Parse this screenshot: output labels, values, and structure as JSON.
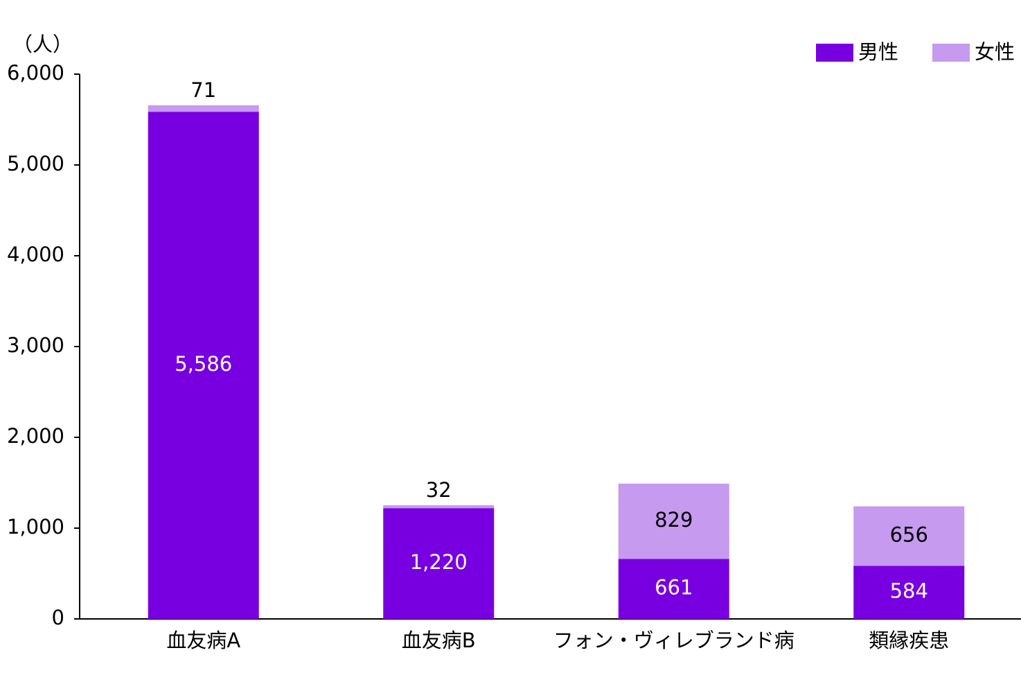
{
  "chart_data": {
    "type": "stacked_bar",
    "unit_label": "（人）",
    "categories": [
      "血友病A",
      "血友病B",
      "フォン・ヴィレブランド病",
      "類縁疾患"
    ],
    "series": [
      {
        "name": "男性",
        "color": "#7800e0",
        "values": [
          5586,
          1220,
          661,
          584
        ],
        "value_labels": [
          "5,586",
          "1,220",
          "661",
          "584"
        ],
        "label_color": "#ffffff"
      },
      {
        "name": "女性",
        "color": "#c69aee",
        "values": [
          71,
          32,
          829,
          656
        ],
        "label_color": "#000000"
      }
    ],
    "ylim": [
      0,
      6000
    ],
    "yticks": [
      0,
      {
        "value": 1000,
        "label": "1,000"
      },
      {
        "value": 2000,
        "label": "2,000"
      },
      {
        "value": 3000,
        "label": "3,000"
      },
      {
        "value": 4000,
        "label": "4,000"
      },
      {
        "value": 5000,
        "label": "5,000"
      },
      {
        "value": 6000,
        "label": "6,000"
      }
    ],
    "legend": "top-right"
  }
}
